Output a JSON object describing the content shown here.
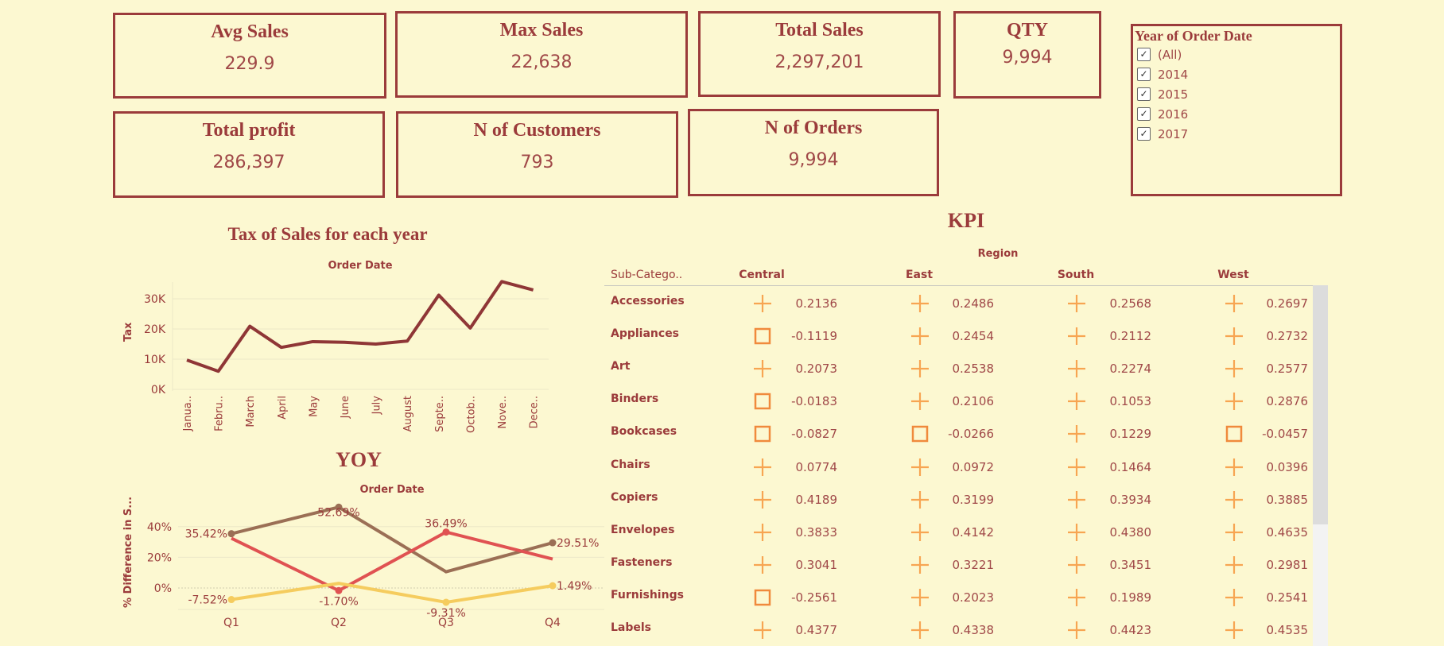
{
  "cards": [
    {
      "title": "Avg Sales",
      "value": "229.9"
    },
    {
      "title": "Max Sales",
      "value": "22,638"
    },
    {
      "title": "Total Sales",
      "value": "2,297,201"
    },
    {
      "title": "QTY",
      "value": "9,994"
    },
    {
      "title": "Total profit",
      "value": "286,397"
    },
    {
      "title": "N of Customers",
      "value": "793"
    },
    {
      "title": "N of Orders",
      "value": "9,994"
    }
  ],
  "filter": {
    "title": "Year of Order Date",
    "items": [
      {
        "label": "(All)",
        "checked": true
      },
      {
        "label": "2014",
        "checked": true
      },
      {
        "label": "2015",
        "checked": true
      },
      {
        "label": "2016",
        "checked": true
      },
      {
        "label": "2017",
        "checked": true
      }
    ]
  },
  "chart_data": [
    {
      "type": "line",
      "title": "Tax of Sales for each year",
      "xlabel": "Order Date",
      "ylabel": "Tax",
      "categories": [
        "Janua..",
        "Febru..",
        "March",
        "April",
        "May",
        "June",
        "July",
        "August",
        "Septe..",
        "Octob..",
        "Nove..",
        "Dece.."
      ],
      "values": [
        9700,
        6000,
        20900,
        13900,
        15800,
        15600,
        15000,
        16000,
        31200,
        20300,
        35700,
        32900
      ],
      "yticks": [
        "0K",
        "10K",
        "20K",
        "30K"
      ],
      "ylim": [
        0,
        36000
      ],
      "color": "#8f3636"
    },
    {
      "type": "line",
      "title": "YOY",
      "xlabel": "Order Date",
      "ylabel": "% Difference in S...",
      "categories": [
        "Q1",
        "Q2",
        "Q3",
        "Q4"
      ],
      "yticks": [
        "0%",
        "20%",
        "40%"
      ],
      "ylim": [
        -13,
        57
      ],
      "series": [
        {
          "name": "series-brown",
          "color": "#9b6f55",
          "values": [
            35.42,
            52.69,
            10.6,
            29.51
          ],
          "labels": [
            "35.42%",
            "52.69%",
            "",
            "29.51%"
          ]
        },
        {
          "name": "series-red",
          "color": "#e05252",
          "values": [
            32.4,
            -1.7,
            36.49,
            18.9
          ],
          "labels": [
            "",
            "-1.70%",
            "36.49%",
            ""
          ]
        },
        {
          "name": "series-yellow",
          "color": "#f5cc5e",
          "values": [
            -7.52,
            3.0,
            -9.31,
            1.49
          ],
          "labels": [
            "-7.52%",
            "",
            "-9.31%",
            "1.49%"
          ]
        }
      ]
    }
  ],
  "kpi": {
    "title": "KPI",
    "region_label": "Region",
    "row_header": "Sub-Catego..",
    "regions": [
      "Central",
      "East",
      "South",
      "West"
    ],
    "rows": [
      {
        "name": "Accessories",
        "values": [
          "0.2136",
          "0.2486",
          "0.2568",
          "0.2697"
        ]
      },
      {
        "name": "Appliances",
        "values": [
          "-0.1119",
          "0.2454",
          "0.2112",
          "0.2732"
        ]
      },
      {
        "name": "Art",
        "values": [
          "0.2073",
          "0.2538",
          "0.2274",
          "0.2577"
        ]
      },
      {
        "name": "Binders",
        "values": [
          "-0.0183",
          "0.2106",
          "0.1053",
          "0.2876"
        ]
      },
      {
        "name": "Bookcases",
        "values": [
          "-0.0827",
          "-0.0266",
          "0.1229",
          "-0.0457"
        ]
      },
      {
        "name": "Chairs",
        "values": [
          "0.0774",
          "0.0972",
          "0.1464",
          "0.0396"
        ]
      },
      {
        "name": "Copiers",
        "values": [
          "0.4189",
          "0.3199",
          "0.3934",
          "0.3885"
        ]
      },
      {
        "name": "Envelopes",
        "values": [
          "0.3833",
          "0.4142",
          "0.4380",
          "0.4635"
        ]
      },
      {
        "name": "Fasteners",
        "values": [
          "0.3041",
          "0.3221",
          "0.3451",
          "0.2981"
        ]
      },
      {
        "name": "Furnishings",
        "values": [
          "-0.2561",
          "0.2023",
          "0.1989",
          "0.2541"
        ]
      },
      {
        "name": "Labels",
        "values": [
          "0.4377",
          "0.4338",
          "0.4423",
          "0.4535"
        ]
      }
    ],
    "colors": {
      "positive": "#f7a552",
      "negative": "#f08a3c"
    }
  }
}
